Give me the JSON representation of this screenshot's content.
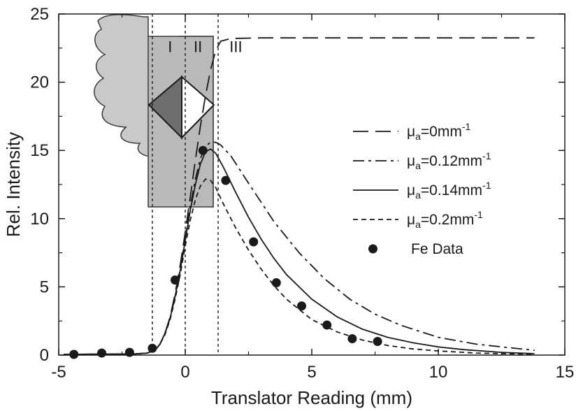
{
  "chart_data": {
    "type": "line",
    "title": "",
    "xlabel": "Translator Reading (mm)",
    "ylabel": "Rel. Intensity",
    "xlim": [
      -5,
      15
    ],
    "ylim": [
      0,
      25
    ],
    "xticks": [
      -5,
      0,
      5,
      10,
      15
    ],
    "yticks": [
      0,
      5,
      10,
      15,
      20,
      25
    ],
    "x_tick_labels": [
      "-5",
      "0",
      "5",
      "10",
      "15"
    ],
    "y_tick_labels": [
      "0",
      "5",
      "10",
      "15",
      "20",
      "25"
    ],
    "grid": false,
    "legend_position": "right",
    "region_boundaries": [
      -1.3,
      0,
      1.3
    ],
    "region_labels": [
      {
        "text": "I",
        "x": -0.6
      },
      {
        "text": "II",
        "x": 0.5
      },
      {
        "text": "III",
        "x": 2.0
      }
    ],
    "region_label_y": 22.2,
    "series": [
      {
        "name": "μa=0mm-1",
        "label_main": "μ",
        "label_sub": "a",
        "label_rest": "=0mm",
        "label_sup": "-1",
        "style": "long-dash",
        "x": [
          -4.8,
          -2,
          -1.5,
          -1.2,
          -1.0,
          -0.8,
          -0.6,
          -0.4,
          -0.2,
          0,
          0.2,
          0.4,
          0.6,
          0.8,
          1.0,
          1.2,
          1.4,
          1.8,
          3,
          6,
          10,
          13.8
        ],
        "y": [
          0.05,
          0.08,
          0.15,
          0.35,
          0.8,
          1.6,
          2.8,
          4.5,
          6.6,
          9.0,
          11.6,
          14.3,
          16.8,
          19.0,
          20.9,
          22.3,
          23.0,
          23.2,
          23.25,
          23.25,
          23.25,
          23.25
        ]
      },
      {
        "name": "μa=0.12mm-1",
        "label_main": "μ",
        "label_sub": "a",
        "label_rest": "=0.12mm",
        "label_sup": "-1",
        "style": "dash-dot",
        "x": [
          -4.8,
          -2,
          -1.5,
          -1.2,
          -1.0,
          -0.8,
          -0.6,
          -0.4,
          -0.2,
          0,
          0.2,
          0.4,
          0.6,
          0.8,
          1.0,
          1.2,
          1.4,
          1.8,
          2.5,
          3.5,
          4.5,
          5.5,
          6.5,
          7.5,
          8.5,
          10,
          11.5,
          13.8
        ],
        "y": [
          0.05,
          0.08,
          0.15,
          0.35,
          0.8,
          1.6,
          2.7,
          4.3,
          6.3,
          8.6,
          10.9,
          12.9,
          14.4,
          15.3,
          15.6,
          15.6,
          15.4,
          14.6,
          12.6,
          9.8,
          7.5,
          5.6,
          4.1,
          3.0,
          2.2,
          1.3,
          0.8,
          0.35
        ]
      },
      {
        "name": "μa=0.14mm-1",
        "label_main": "μ",
        "label_sub": "a",
        "label_rest": "=0.14mm",
        "label_sup": "-1",
        "style": "solid",
        "x": [
          -4.8,
          -2,
          -1.5,
          -1.2,
          -1.0,
          -0.8,
          -0.6,
          -0.4,
          -0.2,
          0,
          0.2,
          0.4,
          0.6,
          0.8,
          1.0,
          1.2,
          1.5,
          2.0,
          2.5,
          3.0,
          3.5,
          4.0,
          5.0,
          6.0,
          7.0,
          8.0,
          9.0,
          10.0,
          11.0,
          12.5,
          13.8
        ],
        "y": [
          0.05,
          0.08,
          0.15,
          0.35,
          0.8,
          1.6,
          2.7,
          4.3,
          6.2,
          8.4,
          10.6,
          12.5,
          14.0,
          14.9,
          15.1,
          14.8,
          13.8,
          11.9,
          10.1,
          8.5,
          7.1,
          5.9,
          4.1,
          2.8,
          1.9,
          1.3,
          0.9,
          0.6,
          0.4,
          0.2,
          0.1
        ]
      },
      {
        "name": "μa=0.2mm-1",
        "label_main": "μ",
        "label_sub": "a",
        "label_rest": "=0.2mm",
        "label_sup": "-1",
        "style": "short-dash",
        "x": [
          -4.8,
          -2,
          -1.5,
          -1.2,
          -1.0,
          -0.8,
          -0.6,
          -0.4,
          -0.2,
          0,
          0.2,
          0.4,
          0.6,
          0.8,
          1.0,
          1.2,
          1.5,
          2.0,
          2.5,
          3.0,
          3.5,
          4.0,
          5.0,
          6.0,
          7.0,
          8.0,
          9.0,
          10.0,
          11.5,
          13.8
        ],
        "y": [
          0.05,
          0.08,
          0.15,
          0.35,
          0.8,
          1.5,
          2.6,
          4.1,
          5.9,
          8.0,
          9.9,
          11.4,
          12.4,
          12.9,
          12.8,
          12.3,
          11.1,
          9.3,
          7.7,
          6.3,
          5.1,
          4.1,
          2.6,
          1.7,
          1.1,
          0.7,
          0.45,
          0.3,
          0.15,
          0.05
        ]
      }
    ],
    "scatter": {
      "name": "Fe Data",
      "x": [
        -4.4,
        -3.3,
        -2.2,
        -1.3,
        -0.4,
        0.7,
        1.6,
        2.7,
        3.6,
        4.6,
        5.6,
        6.6,
        7.6
      ],
      "y": [
        0.05,
        0.15,
        0.2,
        0.5,
        5.5,
        15.0,
        12.8,
        8.3,
        5.3,
        3.6,
        2.2,
        1.2,
        1.0
      ]
    }
  }
}
